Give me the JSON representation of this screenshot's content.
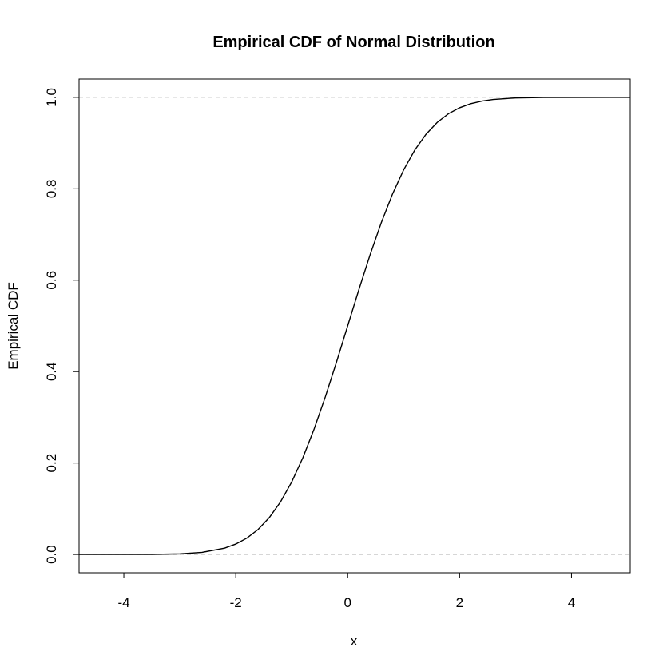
{
  "chart_data": {
    "type": "line",
    "title": "Empirical CDF of Normal Distribution",
    "xlabel": "x",
    "ylabel": "Empirical CDF",
    "xlim": [
      -4.8,
      5.05
    ],
    "ylim": [
      -0.04,
      1.04
    ],
    "x_ticks": [
      -4,
      -2,
      0,
      2,
      4
    ],
    "x_tick_labels": [
      "-4",
      "-2",
      "0",
      "2",
      "4"
    ],
    "y_ticks": [
      0.0,
      0.2,
      0.4,
      0.6,
      0.8,
      1.0
    ],
    "y_tick_labels": [
      "0.0",
      "0.2",
      "0.4",
      "0.6",
      "0.8",
      "1.0"
    ],
    "reference_lines": [
      0.0,
      1.0
    ],
    "series": [
      {
        "values_x": [
          -4.8,
          -3.5,
          -3.0,
          -2.6,
          -2.2,
          -2.0,
          -1.8,
          -1.6,
          -1.4,
          -1.2,
          -1.0,
          -0.8,
          -0.6,
          -0.4,
          -0.2,
          0.0,
          0.2,
          0.4,
          0.6,
          0.8,
          1.0,
          1.2,
          1.4,
          1.6,
          1.8,
          2.0,
          2.2,
          2.4,
          2.6,
          3.0,
          3.5,
          5.05
        ],
        "values_y": [
          0.0,
          0.0002,
          0.0013,
          0.0047,
          0.0139,
          0.0228,
          0.0359,
          0.0548,
          0.0808,
          0.1151,
          0.1587,
          0.2119,
          0.2743,
          0.3446,
          0.4207,
          0.5,
          0.5793,
          0.6554,
          0.7257,
          0.7881,
          0.8413,
          0.8849,
          0.9192,
          0.9452,
          0.9641,
          0.9772,
          0.9861,
          0.9918,
          0.9953,
          0.9987,
          0.9998,
          1.0
        ]
      }
    ],
    "colors": {
      "line": "#000000",
      "reference": "#bebebe",
      "frame": "#000000"
    }
  }
}
